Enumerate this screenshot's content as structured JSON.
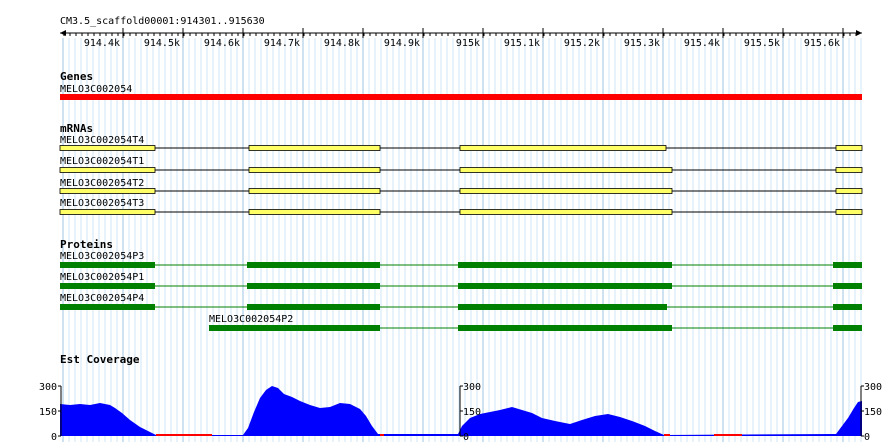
{
  "ruler": {
    "title": "CM3.5_scaffold00001:914301..915630",
    "tick_labels": [
      "914.4k",
      "914.5k",
      "914.6k",
      "914.7k",
      "914.8k",
      "914.9k",
      "915k",
      "915.1k",
      "915.2k",
      "915.3k",
      "915.4k",
      "915.5k",
      "915.6k"
    ]
  },
  "tracks": {
    "genes": {
      "title": "Genes",
      "features": [
        {
          "name": "MELO3C002054",
          "color": "#ff0000"
        }
      ]
    },
    "mrnas": {
      "title": "mRNAs",
      "fill_color": "#ffff66",
      "features": [
        {
          "name": "MELO3C002054T4"
        },
        {
          "name": "MELO3C002054T1"
        },
        {
          "name": "MELO3C002054T2"
        },
        {
          "name": "MELO3C002054T3"
        }
      ]
    },
    "proteins": {
      "title": "Proteins",
      "color": "#008000",
      "features": [
        {
          "name": "MELO3C002054P3"
        },
        {
          "name": "MELO3C002054P1"
        },
        {
          "name": "MELO3C002054P4"
        },
        {
          "name": "MELO3C002054P2"
        }
      ]
    },
    "est_coverage": {
      "title": "Est Coverage",
      "color": "#0000ff",
      "zero_color": "#ff0000",
      "scale_labels": [
        "300",
        "150",
        "0"
      ]
    }
  }
}
